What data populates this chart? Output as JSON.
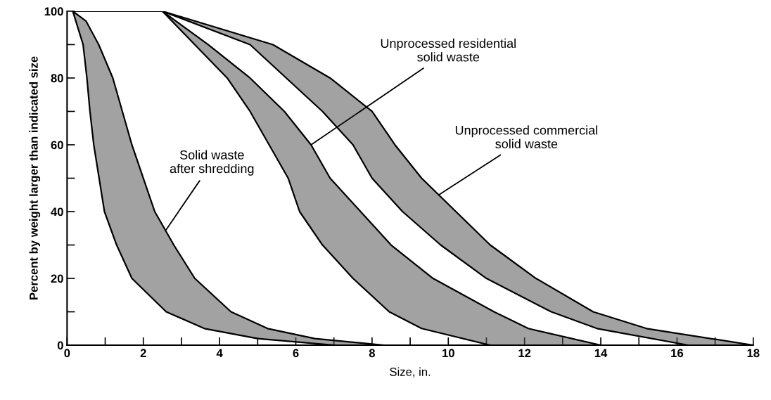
{
  "chart_data": {
    "type": "line",
    "xlabel": "Size, in.",
    "ylabel": "Percent by weight larger than indicated size",
    "xlim": [
      0,
      18
    ],
    "ylim": [
      0,
      100
    ],
    "xticks": [
      0,
      {
        "value": 1,
        "label": null
      },
      2,
      {
        "value": 3,
        "label": null
      },
      4,
      {
        "value": 5,
        "label": null
      },
      6,
      {
        "value": 7,
        "label": null
      },
      8,
      {
        "value": 9,
        "label": null
      },
      10,
      {
        "value": 11,
        "label": null
      },
      12,
      {
        "value": 13,
        "label": null
      },
      14,
      {
        "value": 15,
        "label": null
      },
      16,
      {
        "value": 17,
        "label": null
      },
      18
    ],
    "yticks": [
      0,
      {
        "value": 10,
        "label": null
      },
      20,
      {
        "value": 30,
        "label": null
      },
      40,
      {
        "value": 50,
        "label": null
      },
      60,
      {
        "value": 70,
        "label": null
      },
      80,
      {
        "value": 90,
        "label": null
      },
      100
    ],
    "grid": false,
    "legend": false,
    "marker": "none",
    "line_style": "solid",
    "series": [
      {
        "color": "#000000",
        "x": [
          0.15,
          0.42,
          0.52,
          0.6,
          0.7,
          0.98,
          1.3,
          1.7,
          2.6,
          3.6,
          5.0,
          7.0
        ],
        "values": [
          100,
          90,
          80,
          70,
          60,
          40,
          30,
          20,
          10,
          5,
          2,
          0
        ]
      },
      {
        "color": "#000000",
        "x": [
          0.15,
          0.5,
          0.83,
          1.2,
          1.45,
          1.7,
          2.3,
          2.8,
          3.35,
          4.3,
          5.26,
          6.5,
          8.3
        ],
        "values": [
          100,
          97,
          90,
          80,
          70,
          60,
          40,
          30,
          20,
          10,
          5,
          2,
          0
        ]
      },
      {
        "color": "#000000",
        "x": [
          0.15,
          2.5,
          3.35,
          4.2,
          4.8,
          5.3,
          5.8,
          6.1,
          6.7,
          7.5,
          8.45,
          9.3,
          11.1
        ],
        "values": [
          100,
          100,
          90,
          80,
          70,
          60,
          50,
          40,
          30,
          20,
          10,
          5,
          0
        ]
      },
      {
        "color": "#000000",
        "x": [
          0.15,
          2.5,
          3.7,
          4.8,
          5.7,
          6.4,
          6.9,
          7.7,
          8.5,
          9.6,
          11.2,
          12.1,
          14.0
        ],
        "values": [
          100,
          100,
          90,
          80,
          70,
          60,
          50,
          40,
          30,
          20,
          10,
          5,
          0
        ]
      },
      {
        "color": "#000000",
        "x": [
          0.15,
          2.5,
          4.8,
          5.75,
          6.7,
          7.5,
          8.0,
          8.8,
          9.8,
          11.0,
          12.7,
          13.9,
          16.3
        ],
        "values": [
          100,
          100,
          90,
          80,
          70,
          60,
          50,
          40,
          30,
          20,
          10,
          5,
          0
        ]
      },
      {
        "color": "#000000",
        "x": [
          0.15,
          2.5,
          5.4,
          6.9,
          8.0,
          8.6,
          9.3,
          10.2,
          11.1,
          12.3,
          13.8,
          15.2,
          18
        ],
        "values": [
          100,
          100,
          90,
          80,
          70,
          60,
          50,
          40,
          30,
          20,
          10,
          5,
          0
        ]
      }
    ],
    "annotations": [
      {
        "text": "Solid waste\nafter shredding",
        "x": 2.6,
        "y": 34.6
      },
      {
        "text": "Unprocessed residential\nsolid waste",
        "x": 6.4,
        "y": 60
      },
      {
        "text": "Unprocessed commercial\nsolid waste",
        "x": 9.75,
        "y": 45
      }
    ]
  }
}
